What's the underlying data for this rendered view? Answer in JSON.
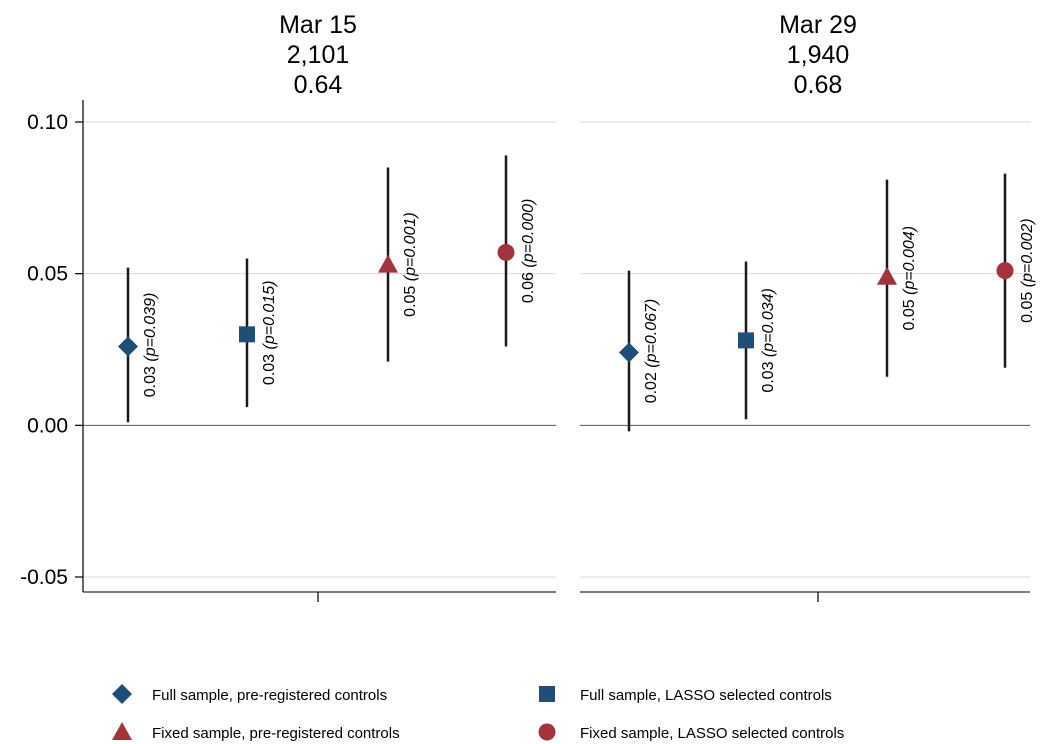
{
  "chart_data": {
    "type": "scatter",
    "subtype": "coefficient plot with 95% confidence intervals",
    "ylim": [
      -0.05,
      0.1
    ],
    "yticks": [
      -0.05,
      0.0,
      0.05,
      0.1
    ],
    "ytick_labels": [
      "-0.05",
      "0.00",
      "0.05",
      "0.10"
    ],
    "grid": true,
    "legend_placement": "bottom",
    "series": [
      {
        "name": "Full sample, pre-registered controls",
        "marker": "diamond",
        "color": "#1f4e79"
      },
      {
        "name": "Full sample, LASSO selected controls",
        "marker": "square",
        "color": "#1f4e79"
      },
      {
        "name": "Fixed sample, pre-registered controls",
        "marker": "triangle",
        "color": "#a3343d"
      },
      {
        "name": "Fixed sample, LASSO selected controls",
        "marker": "circle",
        "color": "#a3343d"
      }
    ],
    "panels": [
      {
        "title_lines": [
          "Mar 15",
          "2,101",
          "0.64"
        ],
        "points": [
          {
            "series": 0,
            "y": 0.026,
            "ci": [
              0.001,
              0.052
            ],
            "label": "0.03 (p=0.039)"
          },
          {
            "series": 1,
            "y": 0.03,
            "ci": [
              0.006,
              0.055
            ],
            "label": "0.03 (p=0.015)"
          },
          {
            "series": 2,
            "y": 0.053,
            "ci": [
              0.021,
              0.085
            ],
            "label": "0.05 (p=0.001)"
          },
          {
            "series": 3,
            "y": 0.057,
            "ci": [
              0.026,
              0.089
            ],
            "label": "0.06 (p=0.000)"
          }
        ]
      },
      {
        "title_lines": [
          "Mar 29",
          "1,940",
          "0.68"
        ],
        "points": [
          {
            "series": 0,
            "y": 0.024,
            "ci": [
              -0.002,
              0.051
            ],
            "label": "0.02 (p=0.067)"
          },
          {
            "series": 1,
            "y": 0.028,
            "ci": [
              0.002,
              0.054
            ],
            "label": "0.03 (p=0.034)"
          },
          {
            "series": 2,
            "y": 0.049,
            "ci": [
              0.016,
              0.081
            ],
            "label": "0.05 (p=0.004)"
          },
          {
            "series": 3,
            "y": 0.051,
            "ci": [
              0.019,
              0.083
            ],
            "label": "0.05 (p=0.002)"
          }
        ]
      }
    ]
  }
}
